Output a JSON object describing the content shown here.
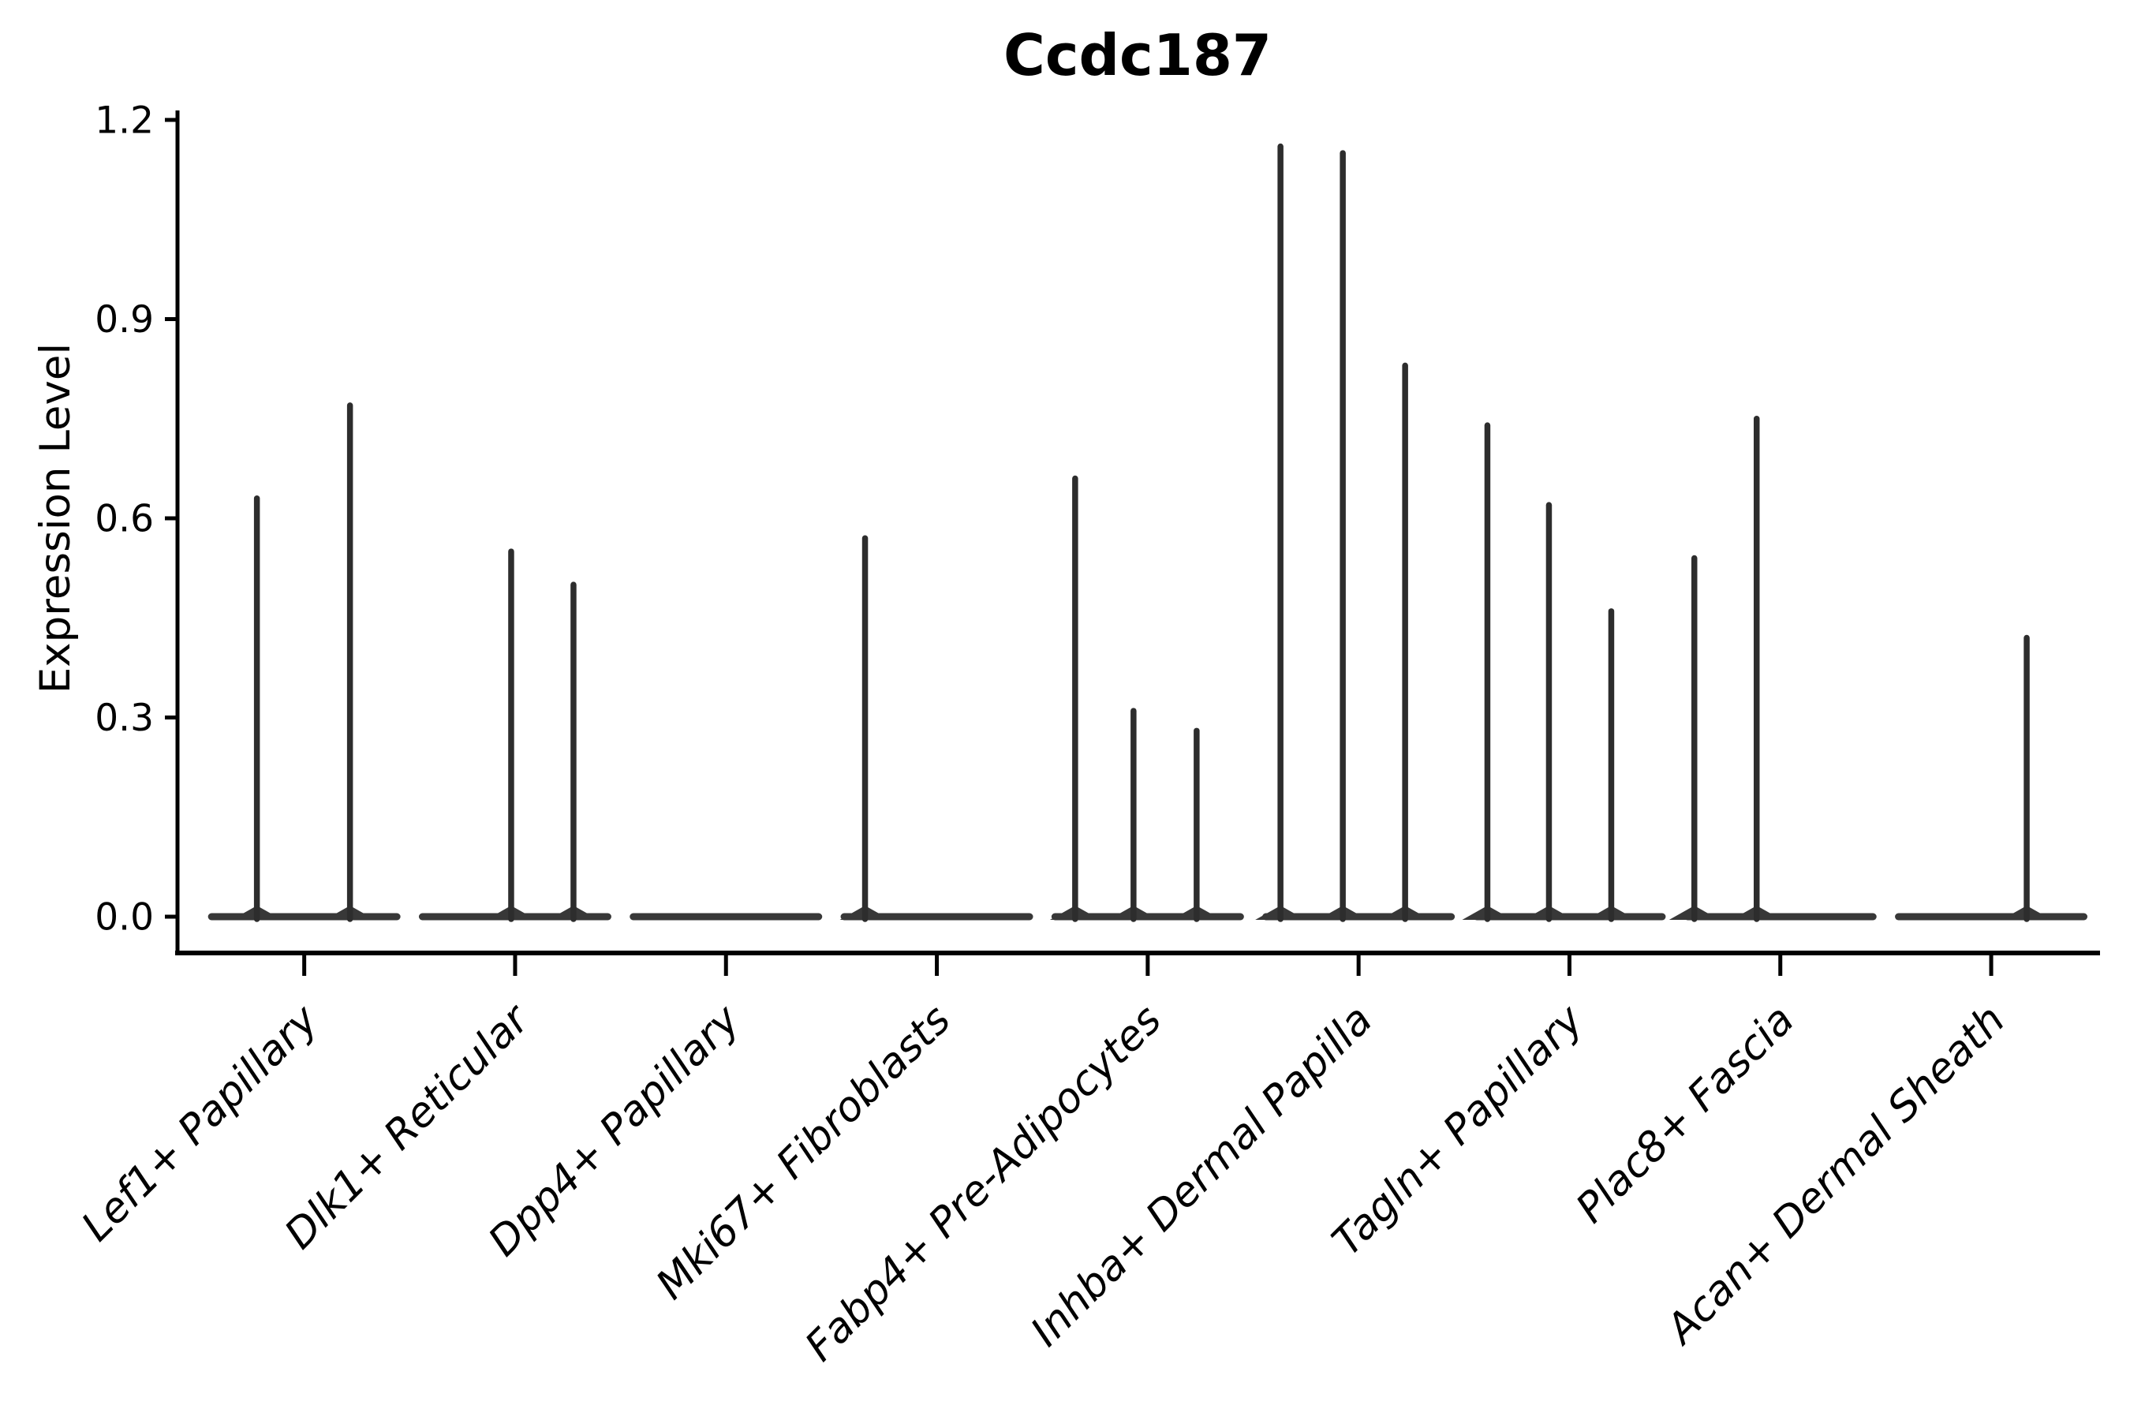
{
  "chart_data": {
    "type": "violin",
    "title": "Ccdc187",
    "ylabel": "Expression Level",
    "xlabel": "",
    "ylim": [
      0,
      1.2
    ],
    "grid": false,
    "legend": "none",
    "ytick_labels": [
      "0.0",
      "0.3",
      "0.6",
      "0.9",
      "1.2"
    ],
    "axis_color": "#000000",
    "violin_color": "#2d2d2d",
    "baseline_color": "#383838",
    "categories": [
      {
        "label": "Lef1+ Papillary",
        "spikes": [
          {
            "offset": -60,
            "value": 0.63
          },
          {
            "offset": 58,
            "value": 0.77
          }
        ]
      },
      {
        "label": "Dlk1+ Reticular",
        "spikes": [
          {
            "offset": -5,
            "value": 0.55
          },
          {
            "offset": 74,
            "value": 0.5
          }
        ]
      },
      {
        "label": "Dpp4+ Papillary",
        "spikes": []
      },
      {
        "label": "Mki67+ Fibroblasts",
        "spikes": [
          {
            "offset": -91,
            "value": 0.57
          }
        ]
      },
      {
        "label": "Fabp4+ Pre-Adipocytes",
        "spikes": [
          {
            "offset": -92,
            "value": 0.66
          },
          {
            "offset": -18,
            "value": 0.31
          },
          {
            "offset": 62,
            "value": 0.28
          }
        ]
      },
      {
        "label": "Inhba+ Dermal Papilla",
        "spikes": [
          {
            "offset": -99,
            "value": 1.16
          },
          {
            "offset": -20,
            "value": 1.15
          },
          {
            "offset": 59,
            "value": 0.83
          }
        ]
      },
      {
        "label": "Tagln+ Papillary",
        "spikes": [
          {
            "offset": -104,
            "value": 0.74
          },
          {
            "offset": -26,
            "value": 0.62
          },
          {
            "offset": 53,
            "value": 0.46
          }
        ]
      },
      {
        "label": "Plac8+ Fascia",
        "spikes": [
          {
            "offset": -109,
            "value": 0.54
          },
          {
            "offset": -30,
            "value": 0.75
          }
        ]
      },
      {
        "label": "Acan+ Dermal Sheath",
        "spikes": [
          {
            "offset": 45,
            "value": 0.42
          }
        ]
      }
    ]
  }
}
